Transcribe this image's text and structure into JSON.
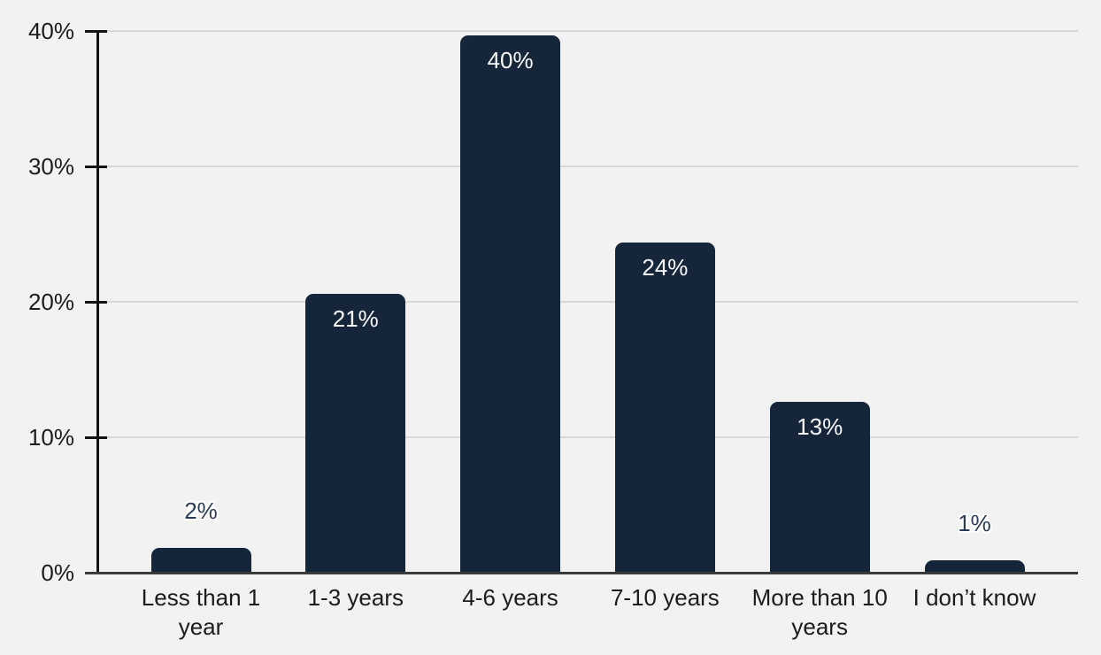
{
  "chart_data": {
    "type": "bar",
    "title": "",
    "xlabel": "",
    "ylabel": "",
    "categories": [
      "Less than 1 year",
      "1-3 years",
      "4-6 years",
      "7-10 years",
      "More than 10 years",
      "I don’t know"
    ],
    "values": [
      2,
      21,
      40,
      24,
      13,
      1
    ],
    "value_labels": [
      "2%",
      "21%",
      "40%",
      "24%",
      "13%",
      "1%"
    ],
    "precise_values": [
      1.8,
      20.6,
      39.7,
      24.4,
      12.6,
      0.9
    ],
    "y_axis": {
      "tick_labels": [
        "0%",
        "10%",
        "20%",
        "30%",
        "40%"
      ],
      "tick_values": [
        0,
        10,
        20,
        30,
        40
      ],
      "range": [
        0,
        40
      ]
    },
    "grid": "horizontal",
    "legend_position": "none",
    "label_placement_threshold_pct": 5,
    "colors": {
      "background": "#f2f2f2",
      "bar": "#16263a",
      "bar_label_inside": "#f7f8fa",
      "bar_label_outside": "#2b3c54",
      "gridline": "#d7d7d7",
      "axis_line": "#141414",
      "baseline": "#3a3a3a",
      "tick_label": "#1c1c1c"
    }
  }
}
